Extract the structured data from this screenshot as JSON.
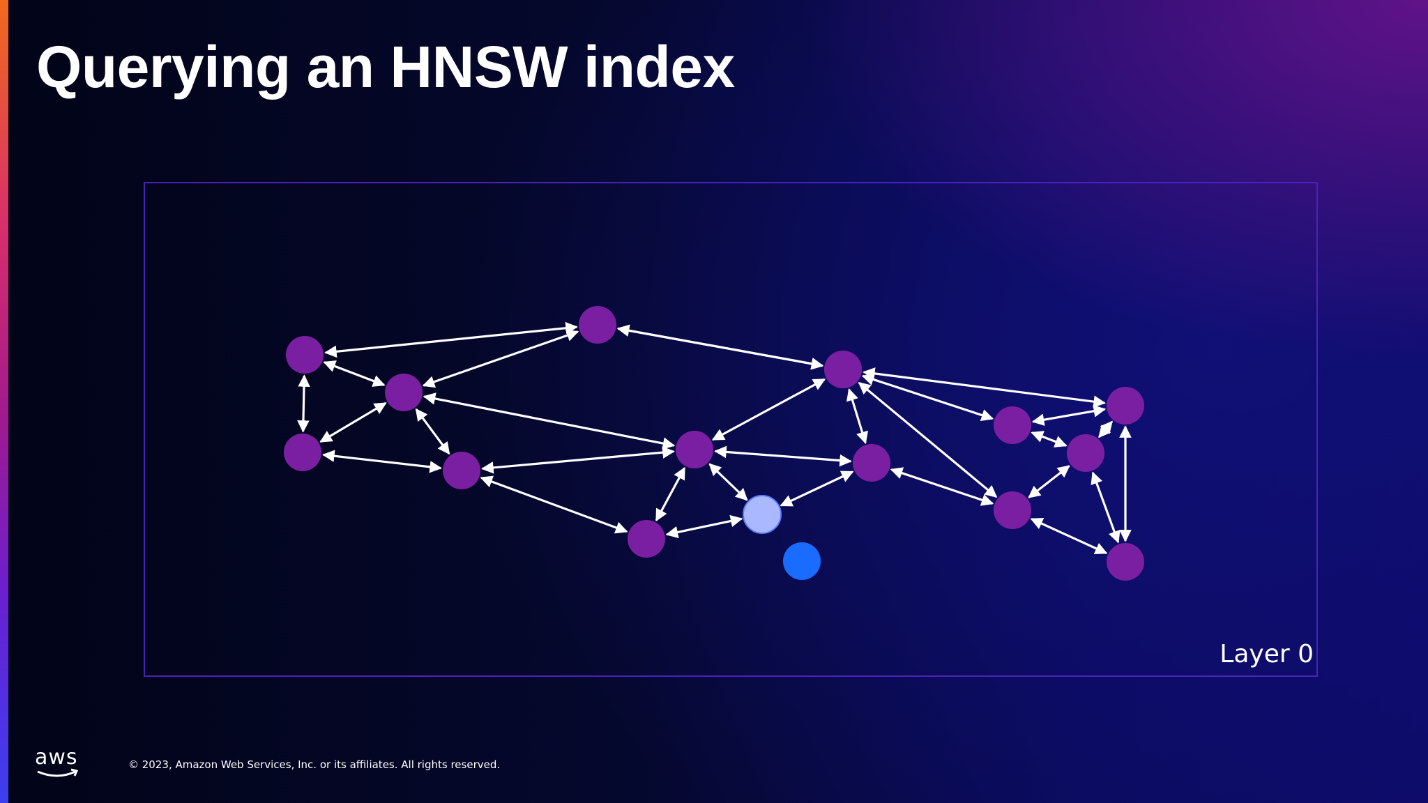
{
  "slide": {
    "title": "Querying an HNSW index",
    "layer_label": "Layer 0",
    "logo_text": "aws",
    "copyright": "© 2023, Amazon Web Services, Inc. or its affiliates. All rights reserved."
  },
  "colors": {
    "node": "#7b1fa2",
    "node_highlight": "#d25bd8",
    "query_point": "#1a6bff",
    "current_node": "#a9b8ff",
    "edge": "#ffffff",
    "layer_border": "#4b22b8"
  },
  "graph": {
    "nodes": [
      {
        "id": "n1",
        "kind": "node"
      },
      {
        "id": "n2",
        "kind": "node"
      },
      {
        "id": "n3",
        "kind": "node"
      },
      {
        "id": "n4",
        "kind": "node"
      },
      {
        "id": "n5",
        "kind": "node"
      },
      {
        "id": "n6",
        "kind": "node"
      },
      {
        "id": "n7",
        "kind": "node"
      },
      {
        "id": "n8",
        "kind": "node"
      },
      {
        "id": "n9",
        "kind": "node"
      },
      {
        "id": "n10",
        "kind": "node"
      },
      {
        "id": "n11",
        "kind": "node"
      },
      {
        "id": "n12",
        "kind": "node"
      },
      {
        "id": "n13",
        "kind": "node"
      },
      {
        "id": "n14",
        "kind": "node"
      },
      {
        "id": "n15",
        "kind": "node"
      },
      {
        "id": "c",
        "kind": "current"
      },
      {
        "id": "q",
        "kind": "query"
      }
    ],
    "edges": [
      [
        "n1",
        "n2"
      ],
      [
        "n1",
        "n3"
      ],
      [
        "n1",
        "n4"
      ],
      [
        "n3",
        "n2"
      ],
      [
        "n3",
        "n4"
      ],
      [
        "n3",
        "n5"
      ],
      [
        "n4",
        "n5"
      ],
      [
        "n2",
        "n7"
      ],
      [
        "n2",
        "n9"
      ],
      [
        "n3",
        "n8"
      ],
      [
        "n8",
        "n5"
      ],
      [
        "n5",
        "n6"
      ],
      [
        "n8",
        "n9"
      ],
      [
        "n8",
        "n10"
      ],
      [
        "n8",
        "c"
      ],
      [
        "n6",
        "c"
      ],
      [
        "n9",
        "n10"
      ],
      [
        "c",
        "n10"
      ],
      [
        "n9",
        "n11"
      ],
      [
        "n9",
        "n14"
      ],
      [
        "n9",
        "n12"
      ],
      [
        "n11",
        "n12"
      ],
      [
        "n12",
        "n13"
      ],
      [
        "n13",
        "n11"
      ],
      [
        "n12",
        "n15"
      ],
      [
        "n13",
        "n14"
      ],
      [
        "n13",
        "n15"
      ],
      [
        "n14",
        "n10"
      ],
      [
        "n14",
        "n15"
      ],
      [
        "n8",
        "n6"
      ]
    ]
  }
}
